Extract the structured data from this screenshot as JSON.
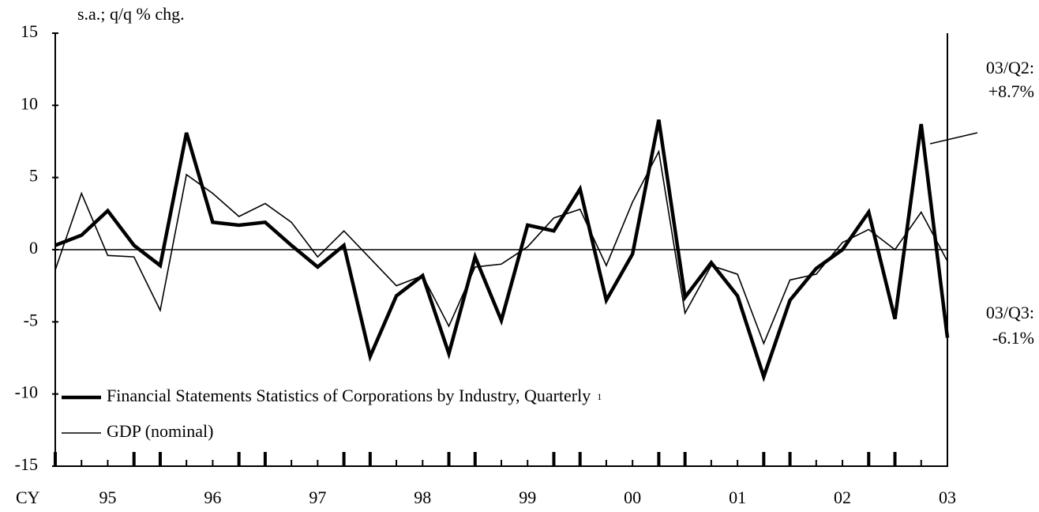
{
  "chart_data": {
    "type": "line",
    "subtitle": "s.a.; q/q % chg.",
    "x_label": "CY",
    "categories": [
      null,
      null,
      "95",
      null,
      null,
      null,
      "96",
      null,
      null,
      null,
      "97",
      null,
      null,
      null,
      "98",
      null,
      null,
      null,
      "99",
      null,
      null,
      null,
      "00",
      null,
      null,
      null,
      "01",
      null,
      null,
      null,
      "02",
      null,
      null,
      null,
      "03"
    ],
    "series": [
      {
        "name": "Financial Statements Statistics of Corporations by Industry, Quarterly",
        "footnote_marker": "1",
        "color": "#000000",
        "line_width": 4.5,
        "values": [
          0.3,
          1.0,
          2.7,
          0.3,
          -1.1,
          8.1,
          1.9,
          1.7,
          1.9,
          0.3,
          -1.2,
          0.3,
          -7.4,
          -3.2,
          -1.8,
          -7.2,
          -0.5,
          -4.9,
          1.7,
          1.3,
          4.2,
          -3.5,
          -0.3,
          9.0,
          -3.3,
          -0.9,
          -3.2,
          -8.8,
          -3.5,
          -1.3,
          0.0,
          2.6,
          -4.8,
          8.7,
          -6.1
        ]
      },
      {
        "name": "GDP (nominal)",
        "color": "#000000",
        "line_width": 1.6,
        "values": [
          -1.4,
          3.9,
          -0.4,
          -0.5,
          -4.2,
          5.2,
          3.9,
          2.3,
          3.2,
          1.9,
          -0.5,
          1.3,
          -0.6,
          -2.5,
          -1.8,
          -5.3,
          -1.2,
          -1.0,
          0.2,
          2.2,
          2.8,
          -1.1,
          3.3,
          6.8,
          -4.4,
          -1.1,
          -1.7,
          -6.5,
          -2.1,
          -1.7,
          0.5,
          1.4,
          0.0,
          2.6,
          -0.8
        ]
      }
    ],
    "annotations": [
      {
        "lines": [
          "03/Q2:",
          "+8.7%"
        ]
      },
      {
        "lines": [
          "03/Q3:",
          "-6.1%"
        ]
      }
    ],
    "ylim": [
      -15,
      15
    ],
    "yticks": [
      15,
      10,
      5,
      0,
      -5,
      -10,
      -15
    ],
    "grid": false
  }
}
